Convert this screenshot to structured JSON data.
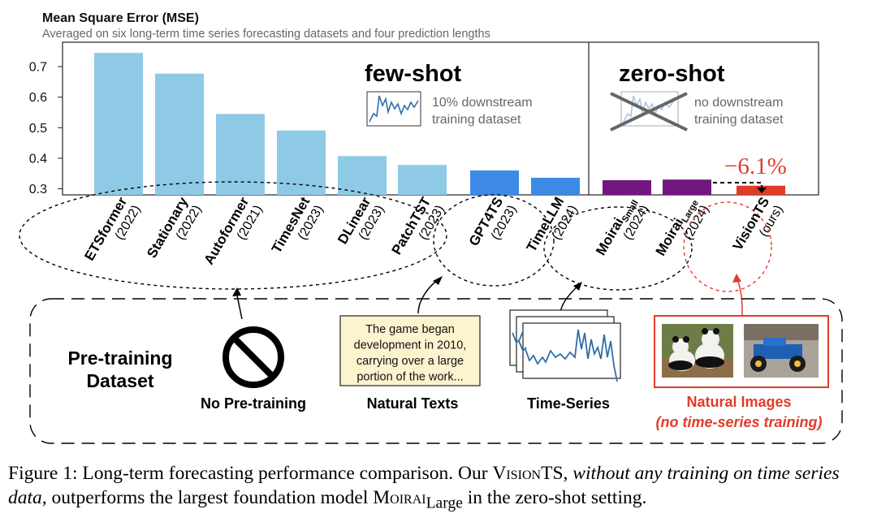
{
  "chart_data": {
    "type": "bar",
    "title": "Mean Square Error (MSE)",
    "subtitle": "Averaged on six long-term time series forecasting datasets and four prediction lengths",
    "ylim": [
      0.28,
      0.78
    ],
    "yticks": [
      0.3,
      0.4,
      0.5,
      0.6,
      0.7
    ],
    "ytick_labels": [
      "0.3",
      "0.4",
      "0.5",
      "0.6",
      "0.7"
    ],
    "groups": [
      "few-shot",
      "zero-shot"
    ],
    "categories": [
      {
        "name": "ETSformer",
        "year": "(2022)",
        "value": 0.745,
        "group": "few-shot",
        "color": "#8ecae6",
        "pretrain": "none"
      },
      {
        "name": "Stationary",
        "year": "(2022)",
        "value": 0.677,
        "group": "few-shot",
        "color": "#8ecae6",
        "pretrain": "none"
      },
      {
        "name": "Autoformer",
        "year": "(2021)",
        "value": 0.545,
        "group": "few-shot",
        "color": "#8ecae6",
        "pretrain": "none"
      },
      {
        "name": "TimesNet",
        "year": "(2023)",
        "value": 0.491,
        "group": "few-shot",
        "color": "#8ecae6",
        "pretrain": "none"
      },
      {
        "name": "DLinear",
        "year": "(2023)",
        "value": 0.407,
        "group": "few-shot",
        "color": "#8ecae6",
        "pretrain": "none"
      },
      {
        "name": "PatchTST",
        "year": "(2023)",
        "value": 0.378,
        "group": "few-shot",
        "color": "#8ecae6",
        "pretrain": "none"
      },
      {
        "name": "GPT4TS",
        "year": "(2023)",
        "value": 0.36,
        "group": "few-shot",
        "color": "#3d8ae6",
        "pretrain": "text"
      },
      {
        "name": "TimeLLM",
        "year": "(2024)",
        "value": 0.336,
        "group": "few-shot",
        "color": "#3d8ae6",
        "pretrain": "text"
      },
      {
        "name": "Moirai",
        "sub": "Small",
        "year": "(2024)",
        "value": 0.328,
        "group": "zero-shot",
        "color": "#72177f",
        "pretrain": "time-series"
      },
      {
        "name": "Moirai",
        "sub": "Large",
        "year": "(2024)",
        "value": 0.33,
        "group": "zero-shot",
        "color": "#72177f",
        "pretrain": "time-series"
      },
      {
        "name": "VisionTS",
        "year": "(ours)",
        "value": 0.31,
        "group": "zero-shot",
        "color": "#e03c2a",
        "pretrain": "images"
      }
    ],
    "annotation": {
      "text": "−6.1%",
      "color": "#e03c2a"
    }
  },
  "panel_few": {
    "title": "few-shot",
    "desc_line1": "10% downstream",
    "desc_line2": "training dataset"
  },
  "panel_zero": {
    "title": "zero-shot",
    "desc_line1": "no downstream",
    "desc_line2": "training dataset"
  },
  "pretraining": {
    "label_line1": "Pre-training",
    "label_line2": "Dataset",
    "none_label": "No Pre-training",
    "text_label": "Natural Texts",
    "ts_label": "Time-Series",
    "img_label": "Natural Images",
    "img_sublabel": "(no time-series training)",
    "text_box_lines": [
      "The game began",
      "development in 2010,",
      "carrying over a large",
      "portion of the work..."
    ]
  },
  "caption": {
    "part1": "Figure 1: Long-term forecasting performance comparison. Our ",
    "visionts": "VisionTS",
    "comma": ", ",
    "italic": "without any training on time series data",
    "part2": ", outperforms the largest foundation model ",
    "moirai": "Moirai",
    "large": "Large",
    "part3": " in the zero-shot setting."
  },
  "colors": {
    "accent_red": "#e03c2a",
    "light_blue": "#8ecae6",
    "blue": "#3d8ae6",
    "purple": "#72177f",
    "line_blue": "#2f6ea8"
  }
}
